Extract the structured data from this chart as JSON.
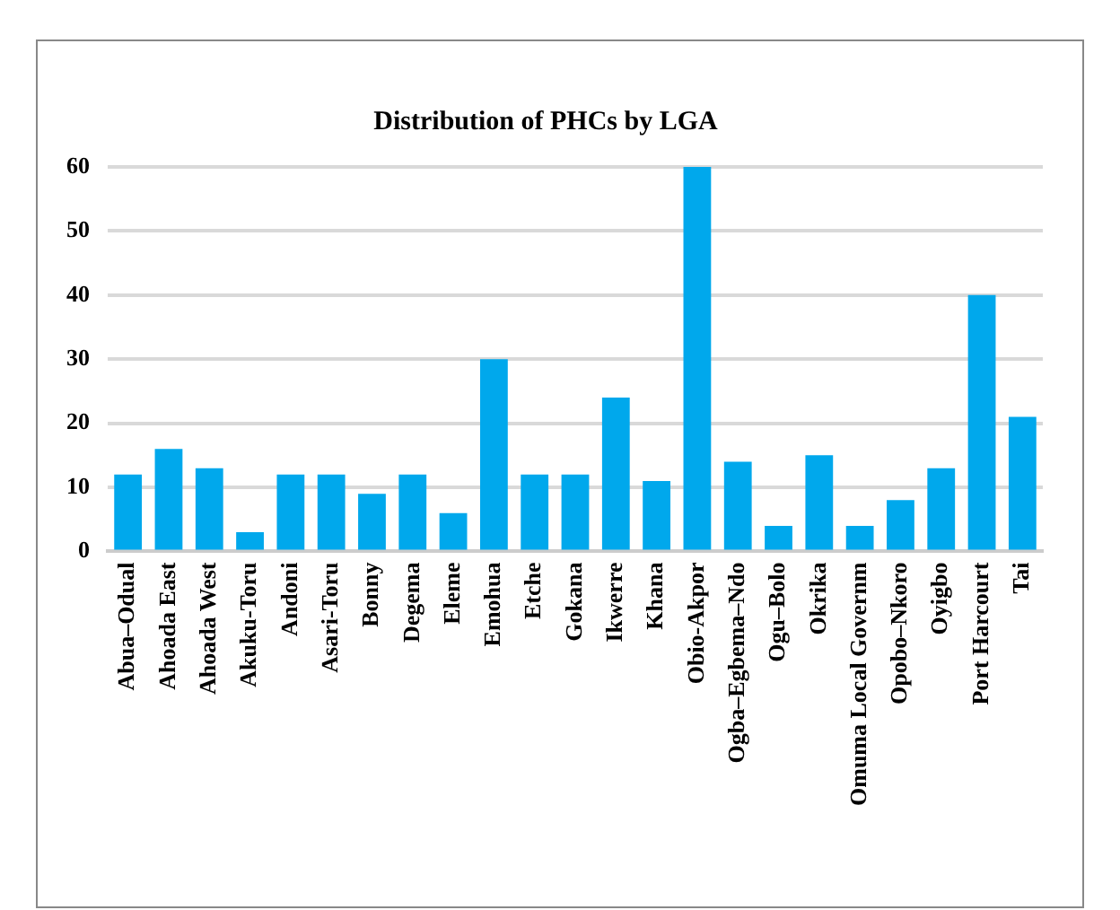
{
  "chart_data": {
    "type": "bar",
    "title": "Distribution of PHCs by LGA",
    "categories": [
      "Abua–Odual",
      "Ahoada East",
      "Ahoada West",
      "Akuku-Toru",
      "Andoni",
      "Asari-Toru",
      "Bonny",
      "Degema",
      "Eleme",
      "Emohua",
      "Etche",
      "Gokana",
      "Ikwerre",
      "Khana",
      "Obio-Akpor",
      "Ogba–Egbema–Ndo",
      "Ogu–Bolo",
      "Okrika",
      "Omuma Local Governm",
      "Opobo–Nkoro",
      "Oyigbo",
      "Port Harcourt",
      "Tai"
    ],
    "values": [
      12,
      16,
      13,
      3,
      12,
      12,
      9,
      12,
      6,
      30,
      12,
      12,
      24,
      11,
      60,
      14,
      4,
      15,
      4,
      8,
      13,
      40,
      21
    ],
    "color": "#00a8ec",
    "ylim": [
      0,
      60
    ],
    "yticks": [
      0,
      10,
      20,
      30,
      40,
      50,
      60
    ],
    "grid": "y",
    "legend": false
  }
}
